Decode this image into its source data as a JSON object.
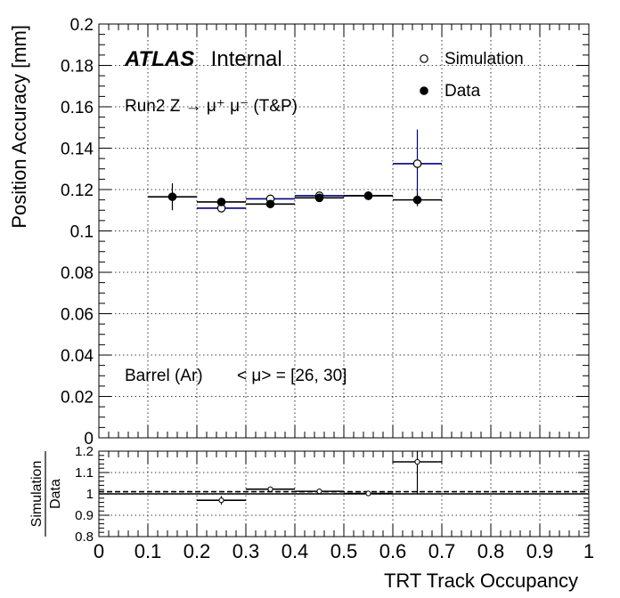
{
  "chart_data": [
    {
      "type": "scatter",
      "ylabel": "Position Accuracy [mm]",
      "ylim": [
        0,
        0.2
      ],
      "xlim": [
        0,
        1
      ],
      "yticks": [
        "0",
        "0.02",
        "0.04",
        "0.06",
        "0.08",
        "0.1",
        "0.12",
        "0.14",
        "0.16",
        "0.18",
        "0.2"
      ],
      "grid": true,
      "legend_position": "top-right",
      "brand": "ATLAS",
      "brand_suffix": "Internal",
      "process_label": "Run2 Z → μ⁺ μ⁻ (T&P)",
      "region_label": "Barrel (Ar)",
      "pileup_label": "< μ> = [26, 30]",
      "series": [
        {
          "name": "Simulation",
          "marker": "open-circle",
          "color": "#000080",
          "points": [
            {
              "x": 0.25,
              "xerr": 0.05,
              "y": 0.111,
              "yerr": 0.002
            },
            {
              "x": 0.35,
              "xerr": 0.05,
              "y": 0.1155,
              "yerr": 0.001
            },
            {
              "x": 0.45,
              "xerr": 0.05,
              "y": 0.117,
              "yerr": 0.001
            },
            {
              "x": 0.55,
              "xerr": 0.05,
              "y": 0.117,
              "yerr": 0.001
            },
            {
              "x": 0.65,
              "xerr": 0.05,
              "y": 0.1325,
              "yerr": 0.0165
            }
          ]
        },
        {
          "name": "Data",
          "marker": "filled-circle",
          "color": "#000000",
          "points": [
            {
              "x": 0.15,
              "xerr": 0.05,
              "y": 0.1165,
              "yerr": 0.0065
            },
            {
              "x": 0.25,
              "xerr": 0.05,
              "y": 0.114,
              "yerr": 0.0015
            },
            {
              "x": 0.35,
              "xerr": 0.05,
              "y": 0.113,
              "yerr": 0.001
            },
            {
              "x": 0.45,
              "xerr": 0.05,
              "y": 0.116,
              "yerr": 0.001
            },
            {
              "x": 0.55,
              "xerr": 0.05,
              "y": 0.117,
              "yerr": 0.001
            },
            {
              "x": 0.65,
              "xerr": 0.05,
              "y": 0.115,
              "yerr": 0.003
            }
          ]
        }
      ]
    },
    {
      "type": "scatter",
      "ylabel_num": "Simulation",
      "ylabel_den": "Data",
      "xlabel": "TRT Track Occupancy",
      "xlim": [
        0,
        1
      ],
      "ylim": [
        0.8,
        1.2
      ],
      "xticks": [
        "0",
        "0.1",
        "0.2",
        "0.3",
        "0.4",
        "0.5",
        "0.6",
        "0.7",
        "0.8",
        "0.9",
        "1"
      ],
      "yticks": [
        "0.8",
        "0.9",
        "1",
        "1.1",
        "1.2"
      ],
      "reference_solid": 1.0,
      "reference_dashed": 1.01,
      "grid": true,
      "series": [
        {
          "name": "Simulation/Data",
          "marker": "open-circle",
          "points": [
            {
              "x": 0.25,
              "xerr": 0.05,
              "y": 0.97,
              "yerr": 0.02
            },
            {
              "x": 0.35,
              "xerr": 0.05,
              "y": 1.022,
              "yerr": 0.005
            },
            {
              "x": 0.45,
              "xerr": 0.05,
              "y": 1.012,
              "yerr": 0.004
            },
            {
              "x": 0.55,
              "xerr": 0.05,
              "y": 1.002,
              "yerr": 0.012
            },
            {
              "x": 0.65,
              "xerr": 0.05,
              "y": 1.15,
              "yerr": 0.15
            }
          ]
        }
      ]
    }
  ]
}
